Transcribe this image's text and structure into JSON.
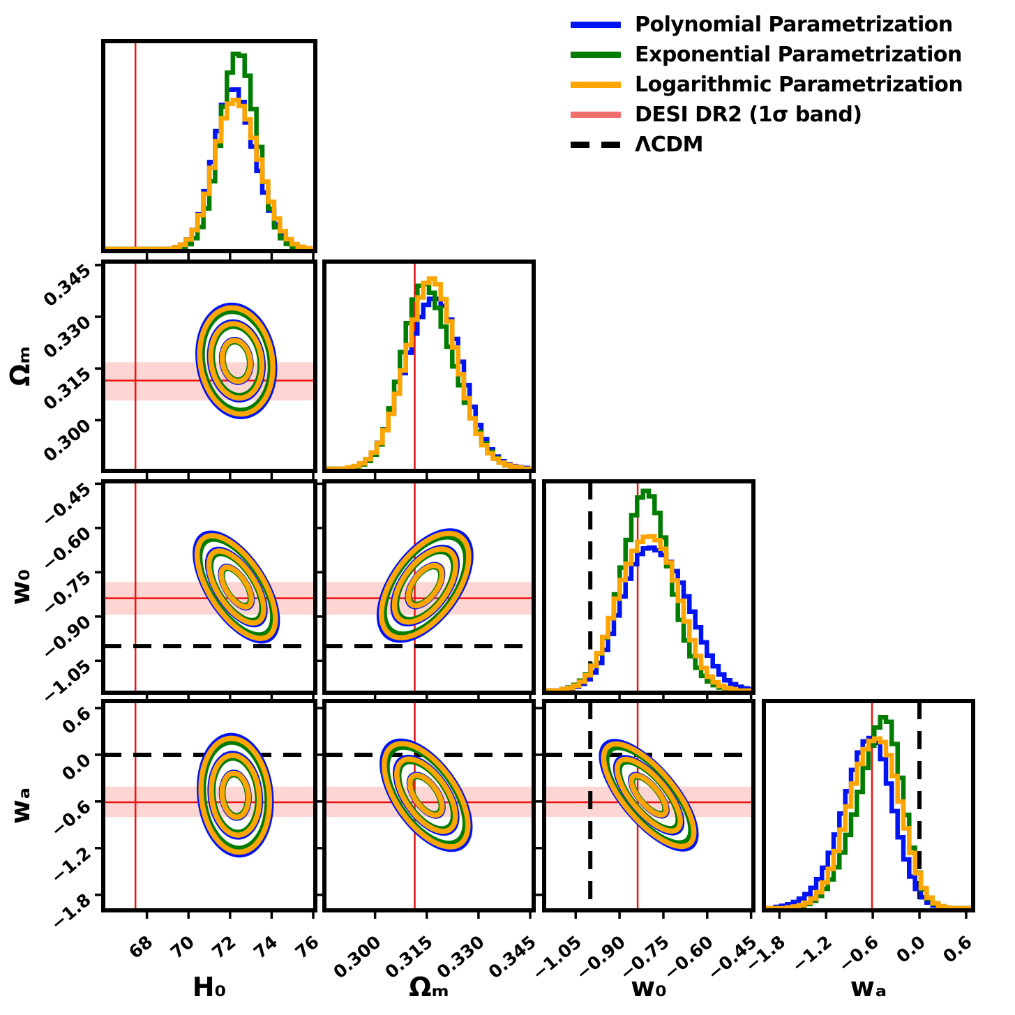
{
  "figure": {
    "kind": "corner plot of cosmological posterior constraints",
    "background": "#ffffff"
  },
  "legend": {
    "items": [
      {
        "label": "Polynomial Parametrization",
        "color": "#0013f2",
        "style": "solid"
      },
      {
        "label": "Exponential Parametrization",
        "color": "#007d00",
        "style": "solid"
      },
      {
        "label": "Logarithmic Parametrization",
        "color": "#ffa500",
        "style": "solid"
      },
      {
        "label": "DESI DR2 (1σ band)",
        "color": "#f56e6e",
        "style": "solid"
      },
      {
        "label": "ΛCDM",
        "color": "#000000",
        "style": "dashed"
      }
    ]
  },
  "axes": {
    "x_titles": [
      "H₀",
      "Ωₘ",
      "w₀",
      "wₐ"
    ],
    "y_titles": [
      "Ωₘ",
      "w₀",
      "wₐ"
    ]
  },
  "colors": {
    "desi_band_fill": "rgba(248,118,108,0.30)",
    "desi_center_line": "#ee1111",
    "lcdm_line": "#000000",
    "panel_border": "#000000"
  },
  "chart_data": {
    "type": "corner_plot",
    "series": [
      {
        "name": "Polynomial Parametrization",
        "short": "polynomial",
        "color": "#0013f2",
        "contour_scale": 1.07
      },
      {
        "name": "Exponential Parametrization",
        "short": "exponential",
        "color": "#007d00",
        "contour_scale": 0.95
      },
      {
        "name": "Logarithmic Parametrization",
        "short": "logarithmic",
        "color": "#ffa500",
        "contour_scale": 1.02
      }
    ],
    "parameters": [
      {
        "name": "H0",
        "label": "H₀",
        "range": [
          65.9,
          76.1
        ],
        "tick_values": [
          68,
          70,
          72,
          74,
          76
        ],
        "ticks": [
          "68",
          "70",
          "72",
          "74",
          "76"
        ],
        "desi": {
          "value": 67.45,
          "band": [
            66.93,
            68.1
          ]
        },
        "lcdm": null
      },
      {
        "name": "Om",
        "label": "Ωₘ",
        "range": [
          0.2853,
          0.346
        ],
        "tick_values": [
          0.3,
          0.315,
          0.33,
          0.345
        ],
        "ticks": [
          "0.300",
          "0.315",
          "0.330",
          "0.345"
        ],
        "desi": {
          "value": 0.3115,
          "band": [
            0.3057,
            0.3168
          ]
        },
        "lcdm": null
      },
      {
        "name": "w0",
        "label": "w₀",
        "range": [
          -1.158,
          -0.442
        ],
        "tick_values": [
          -1.05,
          -0.9,
          -0.75,
          -0.6,
          -0.45
        ],
        "ticks": [
          "−1.05",
          "−0.90",
          "−0.75",
          "−0.60",
          "−0.45"
        ],
        "desi": {
          "value": -0.838,
          "band": [
            -0.894,
            -0.783
          ]
        },
        "lcdm": -1.0
      },
      {
        "name": "wa",
        "label": "wₐ",
        "range": [
          -2.0,
          0.69
        ],
        "tick_values": [
          -1.8,
          -1.2,
          -0.6,
          0.0,
          0.6
        ],
        "ticks": [
          "−1.8",
          "−1.2",
          "−0.6",
          "0.0",
          "0.6"
        ],
        "desi": {
          "value": -0.61,
          "band": [
            -0.8,
            -0.41
          ]
        },
        "lcdm": 0.0
      }
    ],
    "diagonal_distributions": [
      {
        "param": "H0",
        "curves": [
          {
            "series": "polynomial",
            "mu": 72.25,
            "sigma_left": 0.95,
            "sigma_right": 1.05,
            "peak": 0.8
          },
          {
            "series": "exponential",
            "mu": 72.3,
            "sigma_left": 0.85,
            "sigma_right": 0.95,
            "peak": 0.95
          },
          {
            "series": "logarithmic",
            "mu": 72.3,
            "sigma_left": 0.95,
            "sigma_right": 1.05,
            "peak": 0.82
          }
        ]
      },
      {
        "param": "Om",
        "curves": [
          {
            "series": "polynomial",
            "mu": 0.3157,
            "sigma_left": 0.0072,
            "sigma_right": 0.0085,
            "peak": 0.9
          },
          {
            "series": "exponential",
            "mu": 0.3152,
            "sigma_left": 0.007,
            "sigma_right": 0.0082,
            "peak": 0.92
          },
          {
            "series": "logarithmic",
            "mu": 0.3153,
            "sigma_left": 0.0071,
            "sigma_right": 0.0083,
            "peak": 0.92
          }
        ]
      },
      {
        "param": "w0",
        "curves": [
          {
            "series": "polynomial",
            "mu": -0.782,
            "sigma_left": 0.1,
            "sigma_right": 0.108,
            "peak": 0.78
          },
          {
            "series": "exponential",
            "mu": -0.815,
            "sigma_left": 0.088,
            "sigma_right": 0.092,
            "peak": 0.93
          },
          {
            "series": "logarithmic",
            "mu": -0.805,
            "sigma_left": 0.092,
            "sigma_right": 0.096,
            "peak": 0.85
          }
        ]
      },
      {
        "param": "wa",
        "curves": [
          {
            "series": "polynomial",
            "mu": -0.57,
            "sigma_left": 0.4,
            "sigma_right": 0.27,
            "peak": 0.82
          },
          {
            "series": "exponential",
            "mu": -0.47,
            "sigma_left": 0.35,
            "sigma_right": 0.25,
            "peak": 0.92
          },
          {
            "series": "logarithmic",
            "mu": -0.5,
            "sigma_left": 0.36,
            "sigma_right": 0.26,
            "peak": 0.93
          }
        ]
      }
    ],
    "contour_panels": [
      {
        "x": "H0",
        "y": "Om",
        "center": [
          72.3,
          0.3172
        ],
        "semi_x": 1.7,
        "semi_y": 0.0152,
        "angle_deg": -9
      },
      {
        "x": "H0",
        "y": "w0",
        "center": [
          72.3,
          -0.8
        ],
        "semi_x": 1.27,
        "semi_y": 0.195,
        "angle_deg": -33
      },
      {
        "x": "Om",
        "y": "w0",
        "center": [
          0.3145,
          -0.795
        ],
        "semi_x": 0.009,
        "semi_y": 0.2,
        "angle_deg": 36
      },
      {
        "x": "H0",
        "y": "wa",
        "center": [
          72.25,
          -0.52
        ],
        "semi_x": 1.6,
        "semi_y": 0.72,
        "angle_deg": -6
      },
      {
        "x": "Om",
        "y": "wa",
        "center": [
          0.3148,
          -0.52
        ],
        "semi_x": 0.0084,
        "semi_y": 0.75,
        "angle_deg": -35
      },
      {
        "x": "w0",
        "y": "wa",
        "center": [
          -0.8,
          -0.52
        ],
        "semi_x": 0.084,
        "semi_y": 0.8,
        "angle_deg": -40
      }
    ],
    "contour_levels": [
      1.0,
      0.7,
      0.385
    ],
    "reference": {
      "lcdm_w0": -1.0,
      "lcdm_wa": 0.0
    }
  }
}
